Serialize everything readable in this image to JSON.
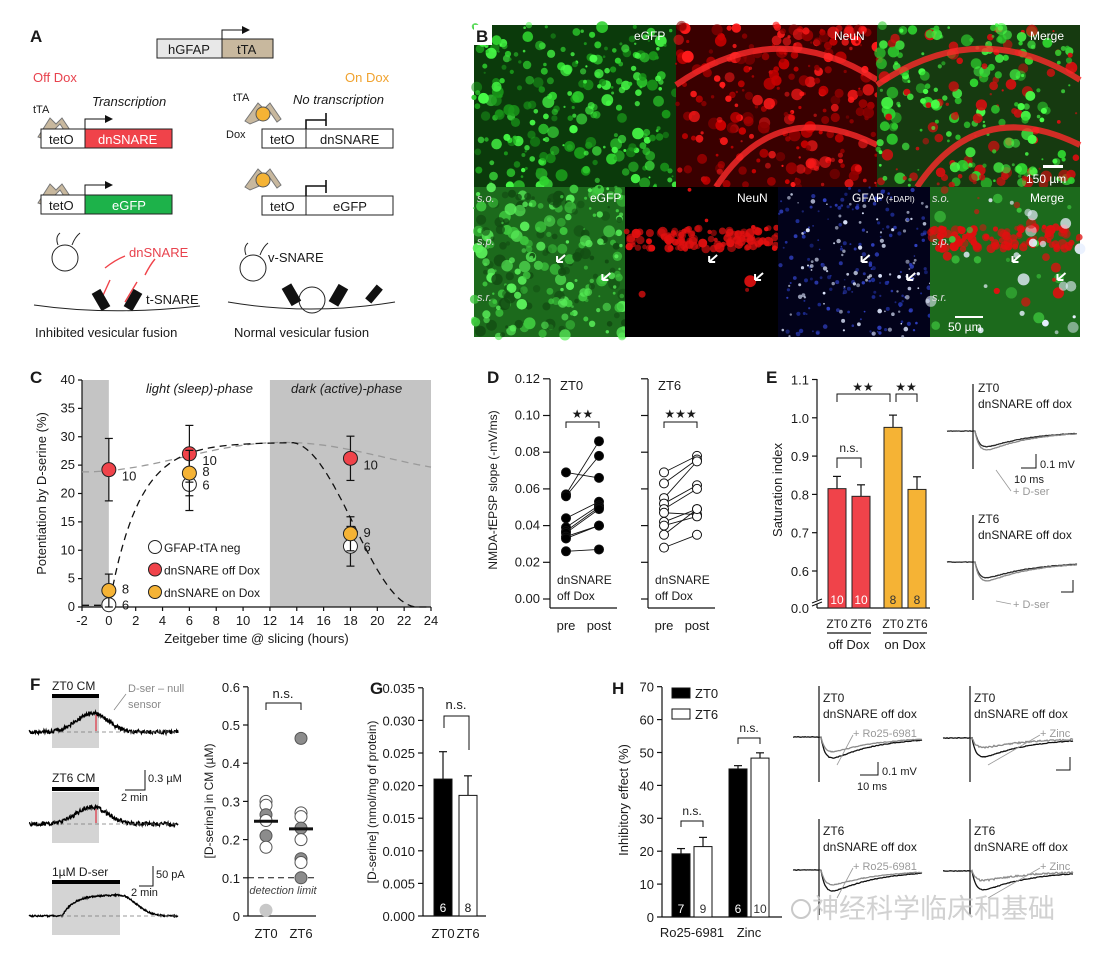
{
  "panel_a": {
    "label": "A",
    "promoter": "hGFAP",
    "transactivator": "tTA",
    "off_dox": "Off Dox",
    "on_dox": "On Dox",
    "tta_label": "tTA",
    "transcription": "Transcription",
    "no_transcription": "No transcription",
    "dox": "Dox",
    "teto": "tetO",
    "dnsnare": "dnSNARE",
    "egfp": "eGFP",
    "dnsnare_protein": "dnSNARE",
    "t_snare": "t-SNARE",
    "v_snare": "v-SNARE",
    "inhibited": "Inhibited vesicular fusion",
    "normal": "Normal vesicular fusion",
    "colors": {
      "off": "#e8424d",
      "on": "#f0a22e",
      "dnsnare": "#f0434a",
      "egfp": "#1db24a",
      "tta": "#c8b89e"
    }
  },
  "panel_b": {
    "label": "B",
    "top": [
      "eGFP",
      "NeuN",
      "Merge"
    ],
    "bottom": [
      "eGFP",
      "NeuN",
      "GFAP",
      "Merge"
    ],
    "dapi": "(+DAPI)",
    "layers": [
      "s.o.",
      "s.p.",
      "s.r."
    ],
    "scale_top": "150 µm",
    "scale_bottom": "50 µm"
  },
  "chart_data": [
    {
      "panel": "C",
      "type": "scatter",
      "xlabel": "Zeitgeber time @ slicing (hours)",
      "ylabel": "Potentiation by D-serine (%)",
      "xlim": [
        -2,
        24
      ],
      "ylim": [
        0,
        40
      ],
      "x_ticks": [
        "-2",
        "0",
        "2",
        "4",
        "6",
        "8",
        "10",
        "12",
        "14",
        "16",
        "18",
        "20",
        "22",
        "24"
      ],
      "y_ticks": [
        "0",
        "5",
        "10",
        "15",
        "20",
        "25",
        "30",
        "35",
        "40"
      ],
      "shaded": [
        [
          -2,
          0
        ],
        [
          12,
          24
        ]
      ],
      "phase_labels": [
        "light (sleep)-phase",
        "dark (active)-phase"
      ],
      "legend_position": "center",
      "series": [
        {
          "name": "GFAP-tTA neg",
          "color": "#ffffff",
          "points": [
            {
              "x": 0,
              "y": 0.4,
              "err": 0.4,
              "n": "6"
            },
            {
              "x": 6,
              "y": 21.6,
              "err": 4.6,
              "n": "6"
            },
            {
              "x": 18,
              "y": 10.7,
              "err": 3.5,
              "n": "6"
            }
          ]
        },
        {
          "name": "dnSNARE off Dox",
          "color": "#f0434a",
          "points": [
            {
              "x": 0,
              "y": 24.2,
              "err": 5.5,
              "n": "10"
            },
            {
              "x": 6,
              "y": 27.0,
              "err": 5.0,
              "n": "10"
            },
            {
              "x": 18,
              "y": 26.2,
              "err": 3.9,
              "n": "10"
            }
          ]
        },
        {
          "name": "dnSNARE on Dox",
          "color": "#f5b335",
          "points": [
            {
              "x": 0,
              "y": 2.9,
              "err": 2.9,
              "n": "8"
            },
            {
              "x": 6,
              "y": 23.6,
              "err": 4.0,
              "n": "8"
            },
            {
              "x": 18,
              "y": 12.9,
              "err": 3.0,
              "n": "9"
            }
          ]
        }
      ]
    },
    {
      "panel": "D",
      "type": "line",
      "ylabel": "NMDA-fEPSP slope (-mV/ms)",
      "ylim": [
        0,
        0.12
      ],
      "y_ticks": [
        "0.00",
        "0.02",
        "0.04",
        "0.06",
        "0.08",
        "0.10",
        "0.12"
      ],
      "categories": [
        "pre",
        "post"
      ],
      "subplots": [
        {
          "title": "ZT0",
          "significance": "★★",
          "note": [
            "dnSNARE",
            "off Dox"
          ],
          "filled": true,
          "pairs": [
            [
              0.069,
              0.066
            ],
            [
              0.057,
              0.086
            ],
            [
              0.056,
              0.078
            ],
            [
              0.044,
              0.053
            ],
            [
              0.039,
              0.051
            ],
            [
              0.037,
              0.05
            ],
            [
              0.036,
              0.049
            ],
            [
              0.034,
              0.04
            ],
            [
              0.033,
              0.04
            ],
            [
              0.026,
              0.027
            ]
          ]
        },
        {
          "title": "ZT6",
          "significance": "★★★",
          "note": [
            "dnSNARE",
            "off Dox"
          ],
          "filled": false,
          "pairs": [
            [
              0.069,
              0.078
            ],
            [
              0.063,
              0.076
            ],
            [
              0.055,
              0.075
            ],
            [
              0.052,
              0.062
            ],
            [
              0.049,
              0.06
            ],
            [
              0.047,
              0.046
            ],
            [
              0.042,
              0.049
            ],
            [
              0.04,
              0.045
            ],
            [
              0.035,
              0.049
            ],
            [
              0.028,
              0.035
            ]
          ]
        }
      ]
    },
    {
      "panel": "E",
      "type": "bar",
      "ylabel": "Saturation index",
      "ylim": [
        0.6,
        1.1
      ],
      "y_ticks": [
        "0.6",
        "0.7",
        "0.8",
        "0.9",
        "1.0",
        "1.1"
      ],
      "y_break_label": "0.0",
      "categories": [
        "ZT0",
        "ZT6",
        "ZT0",
        "ZT6"
      ],
      "groups": [
        "off Dox",
        "on Dox"
      ],
      "values": [
        0.815,
        0.795,
        0.975,
        0.813
      ],
      "errors": [
        0.032,
        0.03,
        0.032,
        0.033
      ],
      "n": [
        "10",
        "10",
        "8",
        "8"
      ],
      "colors": [
        "#f0434a",
        "#f0434a",
        "#f5b335",
        "#f5b335"
      ],
      "significance": [
        "n.s.",
        "★★",
        "★★"
      ],
      "traces": [
        {
          "title": "ZT0",
          "subtitle": "dnSNARE off dox",
          "drug": "+ D-ser",
          "scale_y": "0.1 mV",
          "scale_x": "10 ms"
        },
        {
          "title": "ZT6",
          "subtitle": "dnSNARE off dox",
          "drug": "+ D-ser"
        }
      ]
    },
    {
      "panel": "F",
      "type": "scatter",
      "ylabel": "[D-serine] in CM (µM)",
      "ylim": [
        0,
        0.6
      ],
      "y_ticks": [
        "0",
        "0.1",
        "0.2",
        "0.3",
        "0.4",
        "0.5",
        "0.6"
      ],
      "categories": [
        "ZT0",
        "ZT6"
      ],
      "points": [
        [
          {
            "y": 0.3,
            "fill": "#ffffff"
          },
          {
            "y": 0.29,
            "fill": "#ffffff"
          },
          {
            "y": 0.265,
            "fill": "#8c8c8c"
          },
          {
            "y": 0.25,
            "fill": "#ffffff"
          },
          {
            "y": 0.21,
            "fill": "#8c8c8c"
          },
          {
            "y": 0.18,
            "fill": "#ffffff"
          },
          {
            "y": 0.015,
            "fill": "#c8c8c8"
          }
        ],
        [
          {
            "y": 0.465,
            "fill": "#8c8c8c"
          },
          {
            "y": 0.27,
            "fill": "#ffffff"
          },
          {
            "y": 0.26,
            "fill": "#ffffff"
          },
          {
            "y": 0.23,
            "fill": "#8c8c8c"
          },
          {
            "y": 0.2,
            "fill": "#ffffff"
          },
          {
            "y": 0.15,
            "fill": "#8c8c8c"
          },
          {
            "y": 0.14,
            "fill": "#ffffff"
          },
          {
            "y": 0.1,
            "fill": "#8c8c8c"
          }
        ]
      ],
      "means": [
        0.248,
        0.228
      ],
      "detection_limit": 0.1,
      "detection_label": "detection limit",
      "significance": "n.s.",
      "traces": [
        {
          "title": "ZT0 CM",
          "annotation": [
            "D-ser – null",
            "sensor"
          ]
        },
        {
          "title": "ZT6 CM",
          "scale_y": "0.3 µM",
          "scale_x": "2 min"
        },
        {
          "title": "1µM D-ser",
          "scale_y": "50 pA",
          "scale_x": "2 min"
        }
      ]
    },
    {
      "panel": "G",
      "type": "bar",
      "ylabel": "[D-serine] (nmol/mg of protein)",
      "ylim": [
        0,
        0.035
      ],
      "y_ticks": [
        "0.000",
        "0.005",
        "0.010",
        "0.015",
        "0.020",
        "0.025",
        "0.030",
        "0.035"
      ],
      "categories": [
        "ZT0",
        "ZT6"
      ],
      "values": [
        0.021,
        0.0185
      ],
      "errors": [
        0.0042,
        0.003
      ],
      "n": [
        "6",
        "8"
      ],
      "colors": [
        "#000000",
        "#ffffff"
      ],
      "significance": "n.s."
    },
    {
      "panel": "H",
      "type": "bar",
      "ylabel": "Inhibitory effect (%)",
      "ylim": [
        0,
        70
      ],
      "y_ticks": [
        "0",
        "10",
        "20",
        "30",
        "40",
        "50",
        "60",
        "70"
      ],
      "categories": [
        "Ro25-6981",
        "Zinc"
      ],
      "series": [
        {
          "name": "ZT0",
          "color": "#000000",
          "values": [
            19.2,
            45.0
          ],
          "errors": [
            1.6,
            1.0
          ],
          "n": [
            "7",
            "6"
          ]
        },
        {
          "name": "ZT6",
          "color": "#ffffff",
          "values": [
            21.4,
            48.3
          ],
          "errors": [
            2.8,
            1.6
          ],
          "n": [
            "9",
            "10"
          ]
        }
      ],
      "legend_position": "top-left",
      "significance": [
        "n.s.",
        "n.s."
      ],
      "traces": [
        {
          "title": "ZT0",
          "subtitle": "dnSNARE off dox",
          "drug": "+ Ro25-6981",
          "scale_y": "0.1 mV",
          "scale_x": "10 ms"
        },
        {
          "title": "ZT0",
          "subtitle": "dnSNARE off dox",
          "drug": "+ Zinc"
        },
        {
          "title": "ZT6",
          "subtitle": "dnSNARE off dox",
          "drug": "+ Ro25-6981"
        },
        {
          "title": "ZT6",
          "subtitle": "dnSNARE off dox",
          "drug": "+ Zinc"
        }
      ]
    }
  ],
  "watermark": "神经科学临床和基础"
}
